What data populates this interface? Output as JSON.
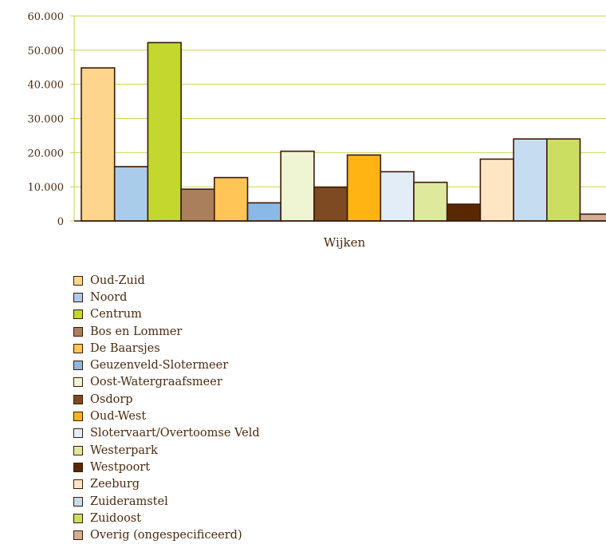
{
  "chart_data": {
    "type": "bar",
    "xlabel": "Wijken",
    "ylabel": "",
    "title": "",
    "ylim": [
      0,
      60000
    ],
    "yticks": [
      0,
      10000,
      20000,
      30000,
      40000,
      50000,
      60000
    ],
    "ytick_labels": [
      "0",
      "10.000",
      "20.000",
      "30.000",
      "40.000",
      "50.000",
      "60.000"
    ],
    "grid": true,
    "legend_position": "bottom",
    "categories": [
      "Wijken"
    ],
    "series": [
      {
        "name": "Oud-Zuid",
        "value": 44800,
        "color": "#FDD58C"
      },
      {
        "name": "Noord",
        "value": 15900,
        "color": "#A9CCEB"
      },
      {
        "name": "Centrum",
        "value": 52200,
        "color": "#C3D72F"
      },
      {
        "name": "Bos en Lommer",
        "value": 9300,
        "color": "#A97F5C"
      },
      {
        "name": "De Baarsjes",
        "value": 12700,
        "color": "#FFC557"
      },
      {
        "name": "Geuzenveld-Slotermeer",
        "value": 5300,
        "color": "#8BB8E4"
      },
      {
        "name": "Oost-Watergraafsmeer",
        "value": 20400,
        "color": "#EFF4D2"
      },
      {
        "name": "Osdorp",
        "value": 9900,
        "color": "#7E4A22"
      },
      {
        "name": "Oud-West",
        "value": 19300,
        "color": "#FFB414"
      },
      {
        "name": "Slotervaart/Overtoomse Veld",
        "value": 14400,
        "color": "#E3EDF8"
      },
      {
        "name": "Westerpark",
        "value": 11300,
        "color": "#DEE99E"
      },
      {
        "name": "Westpoort",
        "value": 4900,
        "color": "#5A2800"
      },
      {
        "name": "Zeeburg",
        "value": 18100,
        "color": "#FEE6C5"
      },
      {
        "name": "Zuideramstel",
        "value": 24000,
        "color": "#C6DCF0"
      },
      {
        "name": "Zuidoost",
        "value": 24000,
        "color": "#CCDE62"
      },
      {
        "name": "Overig (ongespecificeerd)",
        "value": 2000,
        "color": "#D2AE95"
      }
    ]
  }
}
